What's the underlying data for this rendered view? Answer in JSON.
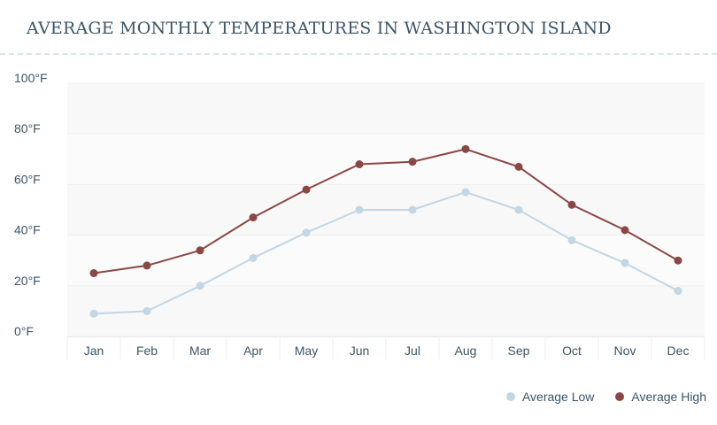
{
  "chart_data": {
    "type": "line",
    "title": "AVERAGE MONTHLY TEMPERATURES IN WASHINGTON ISLAND",
    "categories": [
      "Jan",
      "Feb",
      "Mar",
      "Apr",
      "May",
      "Jun",
      "Jul",
      "Aug",
      "Sep",
      "Oct",
      "Nov",
      "Dec"
    ],
    "y_ticks": [
      "0°F",
      "20°F",
      "40°F",
      "60°F",
      "80°F",
      "100°F"
    ],
    "ylim": [
      0,
      100
    ],
    "series": [
      {
        "name": "Average Low",
        "color": "#c2d6e3",
        "values": [
          9,
          10,
          20,
          31,
          41,
          50,
          50,
          57,
          50,
          38,
          29,
          18
        ]
      },
      {
        "name": "Average High",
        "color": "#8b4744",
        "values": [
          25,
          28,
          34,
          47,
          58,
          68,
          69,
          74,
          67,
          52,
          42,
          30
        ]
      }
    ],
    "legend": "bottom-right",
    "grid": true
  }
}
